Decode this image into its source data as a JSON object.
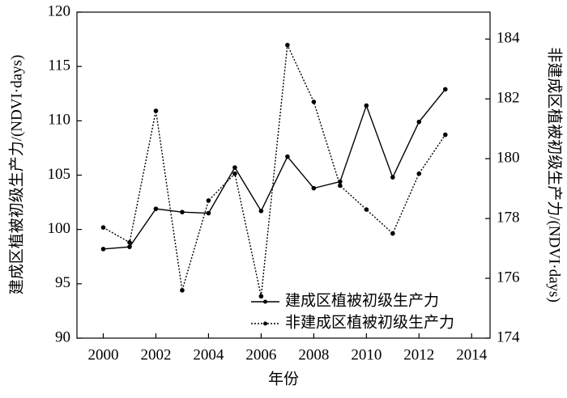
{
  "chart_data": {
    "type": "line",
    "x_label": "年份",
    "y_label": "建成区植被初级生产力/(NDVI·days)",
    "y2_label": "非建成区植被初级生产力/(NDVI·days)",
    "x": [
      2000,
      2001,
      2002,
      2003,
      2004,
      2005,
      2006,
      2007,
      2008,
      2009,
      2010,
      2011,
      2012,
      2013
    ],
    "series": [
      {
        "name": "建成区植被初级生产力",
        "color": "#000000",
        "dash": "solid",
        "values": [
          98.2,
          98.4,
          101.9,
          101.6,
          101.5,
          105.7,
          101.7,
          106.7,
          103.8,
          104.4,
          111.4,
          104.8,
          109.9,
          112.9
        ]
      },
      {
        "name": "非建成区植被初级生产力",
        "color": "#000000",
        "dash": "dotted",
        "axis": "y2",
        "values": [
          177.7,
          177.2,
          181.6,
          175.6,
          178.6,
          179.5,
          175.4,
          183.8,
          181.9,
          179.1,
          178.3,
          177.5,
          179.5,
          180.8
        ]
      }
    ],
    "xlim": [
      1999,
      2014.7
    ],
    "xticks": [
      2000,
      2002,
      2004,
      2006,
      2008,
      2010,
      2012,
      2014
    ],
    "ylim": [
      90,
      120
    ],
    "yticks": [
      90,
      95,
      100,
      105,
      110,
      115,
      120
    ],
    "y2lim": [
      174,
      184.9
    ],
    "y2ticks": [
      174,
      176,
      178,
      180,
      182,
      184
    ],
    "grid": false,
    "legend": "lower-right"
  }
}
